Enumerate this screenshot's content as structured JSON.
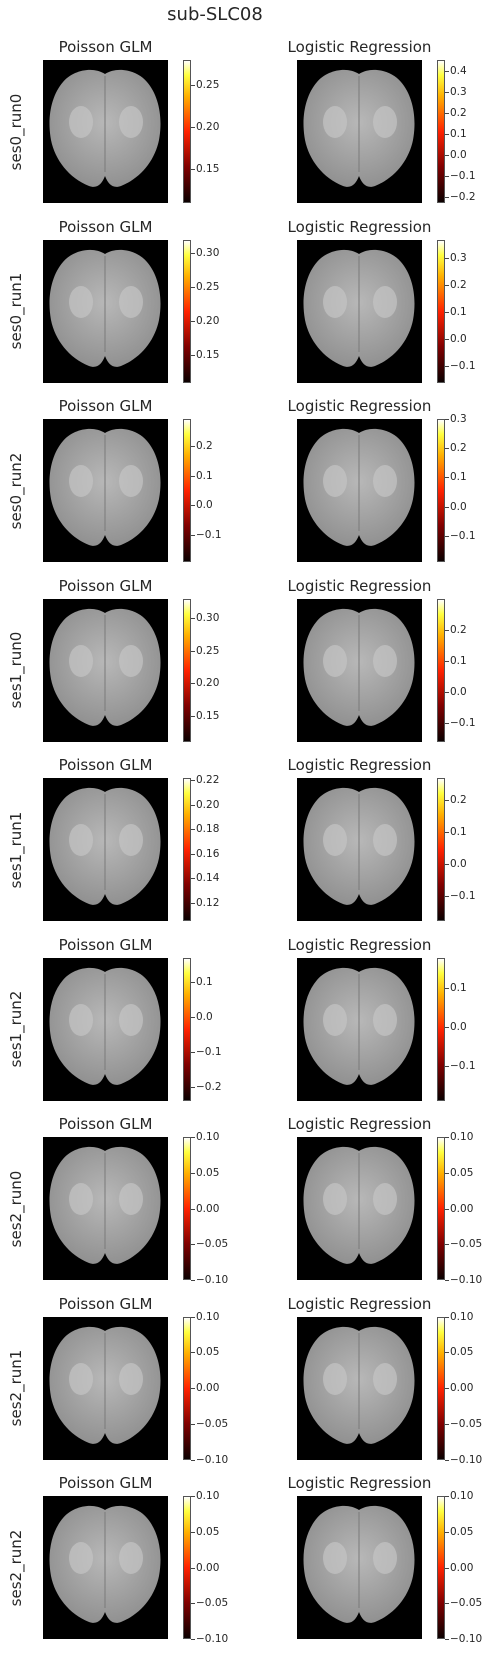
{
  "figure": {
    "title": "sub-SLC08"
  },
  "columns": [
    "Poisson GLM",
    "Logistic Regression"
  ],
  "chart_data": {
    "type": "heatmap",
    "title": "sub-SLC08",
    "colormap": "hot",
    "background": "black",
    "rows": [
      {
        "label": "ses0_run0",
        "panels": [
          {
            "title": "Poisson GLM",
            "ticks": [
              "0.25",
              "0.20",
              "0.15"
            ],
            "range": [
              0.11,
              0.28
            ]
          },
          {
            "title": "Logistic Regression",
            "ticks": [
              "0.4",
              "0.3",
              "0.2",
              "0.1",
              "0.0",
              "−0.1",
              "−0.2"
            ],
            "range": [
              -0.23,
              0.45
            ]
          }
        ]
      },
      {
        "label": "ses0_run1",
        "panels": [
          {
            "title": "Poisson GLM",
            "ticks": [
              "0.30",
              "0.25",
              "0.20",
              "0.15"
            ],
            "range": [
              0.11,
              0.32
            ]
          },
          {
            "title": "Logistic Regression",
            "ticks": [
              "0.3",
              "0.2",
              "0.1",
              "0.0",
              "−0.1"
            ],
            "range": [
              -0.16,
              0.37
            ]
          }
        ]
      },
      {
        "label": "ses0_run2",
        "panels": [
          {
            "title": "Poisson GLM",
            "ticks": [
              "0.2",
              "0.1",
              "0.0",
              "−0.1"
            ],
            "range": [
              -0.19,
              0.29
            ]
          },
          {
            "title": "Logistic Regression",
            "ticks": [
              "0.3",
              "0.2",
              "0.1",
              "0.0",
              "−0.1"
            ],
            "range": [
              -0.19,
              0.3
            ]
          }
        ]
      },
      {
        "label": "ses1_run0",
        "panels": [
          {
            "title": "Poisson GLM",
            "ticks": [
              "0.30",
              "0.25",
              "0.20",
              "0.15"
            ],
            "range": [
              0.11,
              0.33
            ]
          },
          {
            "title": "Logistic Regression",
            "ticks": [
              "0.2",
              "0.1",
              "0.0",
              "−0.1"
            ],
            "range": [
              -0.16,
              0.3
            ]
          }
        ]
      },
      {
        "label": "ses1_run1",
        "panels": [
          {
            "title": "Poisson GLM",
            "ticks": [
              "0.22",
              "0.20",
              "0.18",
              "0.16",
              "0.14",
              "0.12"
            ],
            "range": [
              0.105,
              0.222
            ]
          },
          {
            "title": "Logistic Regression",
            "ticks": [
              "0.2",
              "0.1",
              "0.0",
              "−0.1"
            ],
            "range": [
              -0.18,
              0.27
            ]
          }
        ]
      },
      {
        "label": "ses1_run2",
        "panels": [
          {
            "title": "Poisson GLM",
            "ticks": [
              "0.1",
              "0.0",
              "−0.1",
              "−0.2"
            ],
            "range": [
              -0.24,
              0.17
            ]
          },
          {
            "title": "Logistic Regression",
            "ticks": [
              "0.1",
              "0.0",
              "−0.1"
            ],
            "range": [
              -0.19,
              0.18
            ]
          }
        ]
      },
      {
        "label": "ses2_run0",
        "panels": [
          {
            "title": "Poisson GLM",
            "ticks": [
              "0.10",
              "0.05",
              "0.00",
              "−0.05",
              "−0.10"
            ],
            "range": [
              -0.1,
              0.1
            ]
          },
          {
            "title": "Logistic Regression",
            "ticks": [
              "0.10",
              "0.05",
              "0.00",
              "−0.05",
              "−0.10"
            ],
            "range": [
              -0.1,
              0.1
            ]
          }
        ]
      },
      {
        "label": "ses2_run1",
        "panels": [
          {
            "title": "Poisson GLM",
            "ticks": [
              "0.10",
              "0.05",
              "0.00",
              "−0.05",
              "−0.10"
            ],
            "range": [
              -0.1,
              0.1
            ]
          },
          {
            "title": "Logistic Regression",
            "ticks": [
              "0.10",
              "0.05",
              "0.00",
              "−0.05",
              "−0.10"
            ],
            "range": [
              -0.1,
              0.1
            ]
          }
        ]
      },
      {
        "label": "ses2_run2",
        "panels": [
          {
            "title": "Poisson GLM",
            "ticks": [
              "0.10",
              "0.05",
              "0.00",
              "−0.05",
              "−0.10"
            ],
            "range": [
              -0.1,
              0.1
            ]
          },
          {
            "title": "Logistic Regression",
            "ticks": [
              "0.10",
              "0.05",
              "0.00",
              "−0.05",
              "−0.10"
            ],
            "range": [
              -0.1,
              0.1
            ]
          }
        ]
      }
    ]
  }
}
